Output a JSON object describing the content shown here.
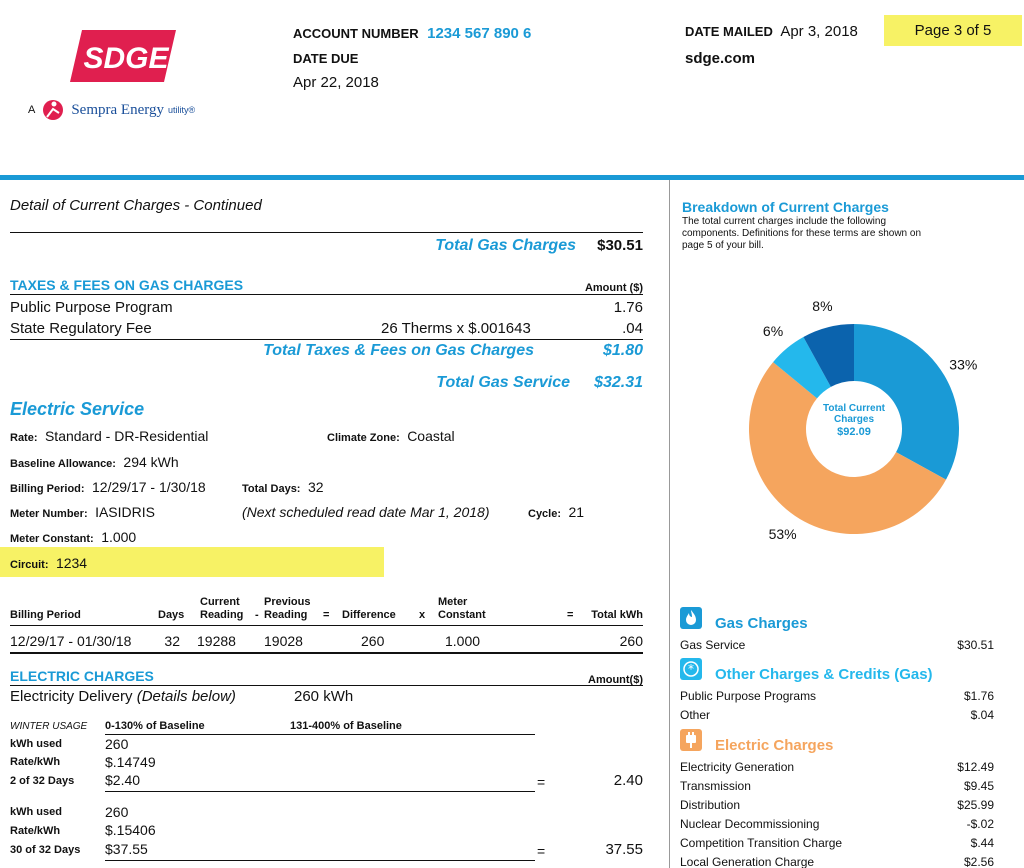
{
  "brand": {
    "logo_text": "SDGE",
    "sempra_prefix": "A",
    "sempra_name": "Sempra Energy",
    "sempra_suffix": "utility®"
  },
  "header": {
    "account_label": "ACCOUNT NUMBER",
    "account_number": "1234 567 890 6",
    "due_label": "DATE DUE",
    "due_date": "Apr 22, 2018",
    "mailed_label": "DATE MAILED",
    "mailed_date": "Apr 3, 2018",
    "page": "Page 3 of 5",
    "website": "sdge.com"
  },
  "detail": {
    "title": "Detail of Current Charges - Continued",
    "total_gas_label": "Total Gas Charges",
    "total_gas_value": "$30.51",
    "taxes_heading": "TAXES & FEES ON GAS CHARGES",
    "amount_header": "Amount ($)",
    "taxes": [
      {
        "label": "Public Purpose Program",
        "calc": "",
        "amount": "1.76"
      },
      {
        "label": "State Regulatory Fee",
        "calc": "26 Therms x $.001643",
        "amount": ".04"
      }
    ],
    "total_taxes_label": "Total Taxes & Fees on Gas Charges",
    "total_taxes_value": "$1.80",
    "total_gas_service_label": "Total Gas Service",
    "total_gas_service_value": "$32.31"
  },
  "electric": {
    "heading": "Electric Service",
    "rate_label": "Rate:",
    "rate_value": "Standard - DR-Residential",
    "climate_label": "Climate Zone:",
    "climate_value": "Coastal",
    "baseline_label": "Baseline Allowance:",
    "baseline_value": "294 kWh",
    "period_label": "Billing Period:",
    "period_value": "12/29/17 - 1/30/18",
    "days_label": "Total Days:",
    "days_value": "32",
    "meter_label": "Meter Number:",
    "meter_value": "IASIDRIS",
    "next_read": "(Next scheduled read date Mar 1, 2018)",
    "cycle_label": "Cycle:",
    "cycle_value": "21",
    "constant_label": "Meter Constant:",
    "constant_value": "1.000",
    "circuit_label": "Circuit:",
    "circuit_value": "1234"
  },
  "meter_table": {
    "headers": {
      "period": "Billing Period",
      "days": "Days",
      "current1": "Current",
      "current2": "Reading",
      "minus": "-",
      "previous1": "Previous",
      "previous2": "Reading",
      "eq1": "=",
      "difference": "Difference",
      "x": "x",
      "meter1": "Meter",
      "meter2": "Constant",
      "eq2": "=",
      "total": "Total kWh"
    },
    "row": {
      "period": "12/29/17 - 01/30/18",
      "days": "32",
      "current": "19288",
      "previous": "19028",
      "difference": "260",
      "constant": "1.000",
      "total": "260"
    }
  },
  "electric_charges": {
    "heading": "ELECTRIC CHARGES",
    "amount_header": "Amount($)",
    "delivery_label": "Electricity Delivery",
    "delivery_note": "(Details below)",
    "delivery_kwh": "260 kWh",
    "winter_label": "WINTER USAGE",
    "tier1_label": "0-130% of Baseline",
    "tier2_label": "131-400%  of Baseline",
    "block1": {
      "kwh_label": "kWh used",
      "kwh": "260",
      "rate_label": "Rate/kWh",
      "rate": "$.14749",
      "days_label": "2 of 32 Days",
      "amount": "$2.40",
      "eq": "=",
      "total": "2.40"
    },
    "block2": {
      "kwh_label": "kWh used",
      "kwh": "260",
      "rate_label": "Rate/kWh",
      "rate": "$.15406",
      "days_label": "30 of 32 Days",
      "amount": "$37.55",
      "eq": "=",
      "total": "37.55"
    }
  },
  "breakdown": {
    "title": "Breakdown of Current Charges",
    "desc": "The total current charges include the following components. Definitions for these terms are  shown on page 5 of your bill.",
    "center_label": "Total Current Charges",
    "center_value": "$92.09",
    "gas_heading": "Gas Charges",
    "gas_items": [
      {
        "label": "Gas Service",
        "amount": "$30.51"
      }
    ],
    "other_heading": "Other Charges & Credits (Gas)",
    "other_items": [
      {
        "label": "Public Purpose Programs",
        "amount": "$1.76"
      },
      {
        "label": "Other",
        "amount": "$.04"
      }
    ],
    "electric_heading": "Electric Charges",
    "electric_items": [
      {
        "label": "Electricity Generation",
        "amount": "$12.49"
      },
      {
        "label": "Transmission",
        "amount": "$9.45"
      },
      {
        "label": "Distribution",
        "amount": "$25.99"
      },
      {
        "label": "Nuclear Decommissioning",
        "amount": "-$.02"
      },
      {
        "label": "Competition Transition Charge",
        "amount": "$.44"
      },
      {
        "label": "Local Generation Charge",
        "amount": "$2.56"
      }
    ],
    "colors": {
      "blue": "#1a9ad6",
      "orange": "#f5a55e",
      "light": "#24b8ec",
      "dark": "#0b63ad"
    }
  },
  "chart_data": {
    "type": "pie",
    "title": "Breakdown of Current Charges",
    "categories": [
      "Gas Charges",
      "Electric Charges",
      "Other Charges & Credits (Gas)",
      "Other"
    ],
    "values": [
      33,
      53,
      6,
      8
    ],
    "labels": [
      "33%",
      "53%",
      "6%",
      "8%"
    ],
    "colors": [
      "#1a9ad6",
      "#f5a55e",
      "#24b8ec",
      "#0b63ad"
    ]
  }
}
